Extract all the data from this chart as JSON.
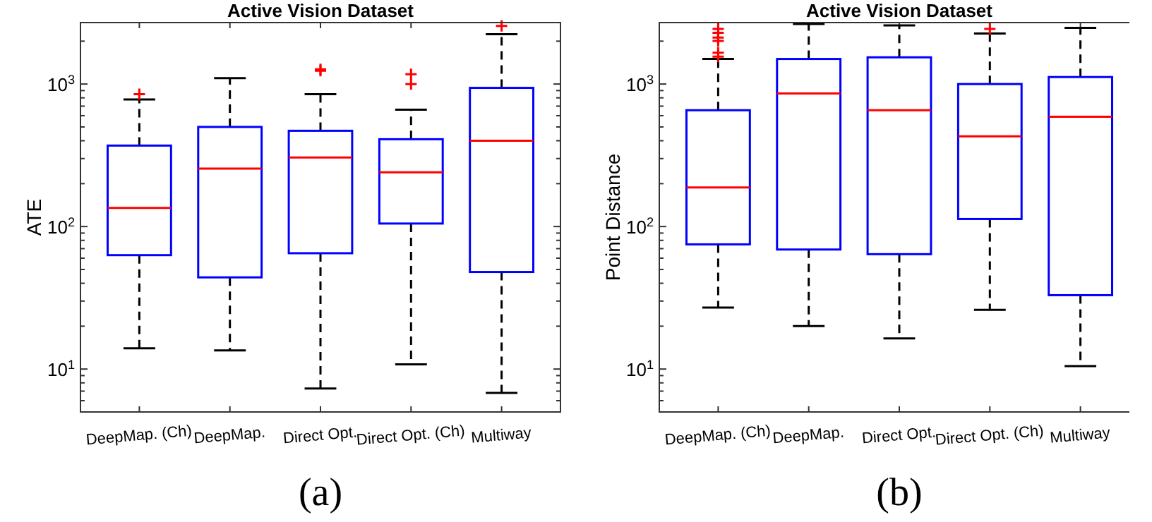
{
  "chart_data": [
    {
      "type": "box",
      "title": "Active Vision Dataset",
      "ylabel": "ATE",
      "annotations": [
        "(a)"
      ],
      "log": "y",
      "grid": false,
      "marker": "cross",
      "color": "#0000ff",
      "categories": [
        "DeepMap. (Ch)",
        "DeepMap.",
        "Direct Opt.",
        "Direct Opt. (Ch)",
        "Multiway"
      ],
      "ylim": [
        5,
        2700
      ],
      "yticks": [
        {
          "value": 10,
          "label": "10$^{1}$"
        },
        {
          "value": 100,
          "label": "10$^{2}$"
        },
        {
          "value": 1000,
          "label": "10$^{3}$"
        },
        {
          "value": 6,
          "label": null
        },
        {
          "value": 7,
          "label": null
        },
        {
          "value": 8,
          "label": null
        },
        {
          "value": 9,
          "label": null
        },
        {
          "value": 20,
          "label": null
        },
        {
          "value": 30,
          "label": null
        },
        {
          "value": 40,
          "label": null
        },
        {
          "value": 50,
          "label": null
        },
        {
          "value": 60,
          "label": null
        },
        {
          "value": 70,
          "label": null
        },
        {
          "value": 80,
          "label": null
        },
        {
          "value": 90,
          "label": null
        },
        {
          "value": 200,
          "label": null
        },
        {
          "value": 300,
          "label": null
        },
        {
          "value": 400,
          "label": null
        },
        {
          "value": 500,
          "label": null
        },
        {
          "value": 600,
          "label": null
        },
        {
          "value": 700,
          "label": null
        },
        {
          "value": 800,
          "label": null
        },
        {
          "value": 900,
          "label": null
        },
        {
          "value": 2000,
          "label": null
        }
      ],
      "boxes": [
        {
          "low": 14,
          "q1": 63,
          "median": 135,
          "q3": 370,
          "high": 780,
          "outliers": [
            850
          ]
        },
        {
          "low": 13.5,
          "q1": 44,
          "median": 255,
          "q3": 500,
          "high": 1100
        },
        {
          "low": 7.3,
          "q1": 65,
          "median": 305,
          "q3": 470,
          "high": 850,
          "outliers": [
            1240,
            1270
          ]
        },
        {
          "low": 10.8,
          "q1": 105,
          "median": 240,
          "q3": 410,
          "high": 660,
          "outliers": [
            1000,
            1170
          ]
        },
        {
          "low": 6.8,
          "q1": 48,
          "median": 400,
          "q3": 940,
          "high": 2240,
          "outliers": [
            2560
          ]
        }
      ]
    },
    {
      "type": "box",
      "title": "Active Vision Dataset",
      "ylabel": "Point Distance",
      "annotations": [
        "(b)"
      ],
      "log": "y",
      "grid": false,
      "marker": "cross",
      "color": "#0000ff",
      "categories": [
        "DeepMap. (Ch)",
        "DeepMap.",
        "Direct Opt.",
        "Direct Opt. (Ch)",
        "Multiway"
      ],
      "ylim": [
        5,
        2700
      ],
      "yticks": [
        {
          "value": 10,
          "label": "10$^{1}$"
        },
        {
          "value": 100,
          "label": "10$^{2}$"
        },
        {
          "value": 1000,
          "label": "10$^{3}$"
        },
        {
          "value": 6,
          "label": null
        },
        {
          "value": 7,
          "label": null
        },
        {
          "value": 8,
          "label": null
        },
        {
          "value": 9,
          "label": null
        },
        {
          "value": 20,
          "label": null
        },
        {
          "value": 30,
          "label": null
        },
        {
          "value": 40,
          "label": null
        },
        {
          "value": 50,
          "label": null
        },
        {
          "value": 60,
          "label": null
        },
        {
          "value": 70,
          "label": null
        },
        {
          "value": 80,
          "label": null
        },
        {
          "value": 90,
          "label": null
        },
        {
          "value": 200,
          "label": null
        },
        {
          "value": 300,
          "label": null
        },
        {
          "value": 400,
          "label": null
        },
        {
          "value": 500,
          "label": null
        },
        {
          "value": 600,
          "label": null
        },
        {
          "value": 700,
          "label": null
        },
        {
          "value": 800,
          "label": null
        },
        {
          "value": 900,
          "label": null
        },
        {
          "value": 2000,
          "label": null
        }
      ],
      "boxes": [
        {
          "low": 27,
          "q1": 75,
          "median": 188,
          "q3": 655,
          "high": 1500,
          "outliers": [
            1560,
            1660,
            2010,
            2120,
            2290,
            2440
          ]
        },
        {
          "low": 20,
          "q1": 69,
          "median": 860,
          "q3": 1500,
          "high": 2640
        },
        {
          "low": 16.4,
          "q1": 64,
          "median": 655,
          "q3": 1540,
          "high": 2580
        },
        {
          "low": 26,
          "q1": 113,
          "median": 430,
          "q3": 1000,
          "high": 2260,
          "outliers": [
            2440
          ]
        },
        {
          "low": 10.5,
          "q1": 33,
          "median": 590,
          "q3": 1120,
          "high": 2480
        }
      ]
    }
  ]
}
